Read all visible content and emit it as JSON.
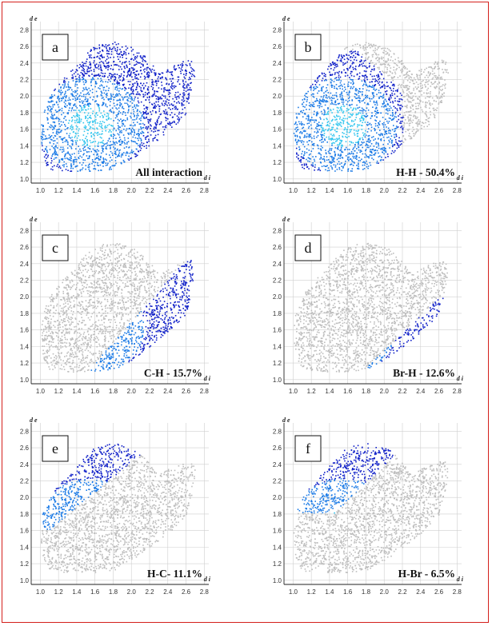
{
  "figure": {
    "colors": {
      "border": "#d4201c",
      "background_points": "#bdbdbd",
      "highlight_low": "#1020c8",
      "highlight_mid": "#1c7be6",
      "highlight_high": "#35c6ee"
    }
  },
  "chart_data": [
    {
      "type": "scatter",
      "panel_label": "a",
      "caption": "All interaction",
      "xlabel": "d i",
      "ylabel": "d e",
      "xlim": [
        0.9,
        2.85
      ],
      "ylim": [
        0.95,
        2.9
      ],
      "xticks": [
        "1.0",
        "1.2",
        "1.4",
        "1.6",
        "1.8",
        "2.0",
        "2.2",
        "2.4",
        "2.6",
        "2.8"
      ],
      "yticks": [
        "1.0",
        "1.2",
        "1.4",
        "1.6",
        "1.8",
        "2.0",
        "2.2",
        "2.4",
        "2.6",
        "2.8"
      ],
      "highlight": "all",
      "percentage": null
    },
    {
      "type": "scatter",
      "panel_label": "b",
      "caption": "H-H - 50.4%",
      "xlabel": "d i",
      "ylabel": "d e",
      "xlim": [
        0.9,
        2.85
      ],
      "ylim": [
        0.95,
        2.9
      ],
      "xticks": [
        "1.0",
        "1.2",
        "1.4",
        "1.6",
        "1.8",
        "2.0",
        "2.2",
        "2.4",
        "2.6",
        "2.8"
      ],
      "yticks": [
        "1.0",
        "1.2",
        "1.4",
        "1.6",
        "1.8",
        "2.0",
        "2.2",
        "2.4",
        "2.6",
        "2.8"
      ],
      "highlight": "H-H",
      "percentage": 50.4
    },
    {
      "type": "scatter",
      "panel_label": "c",
      "caption": "C-H - 15.7%",
      "xlabel": "d i",
      "ylabel": "d e",
      "xlim": [
        0.9,
        2.85
      ],
      "ylim": [
        0.95,
        2.9
      ],
      "xticks": [
        "1.0",
        "1.2",
        "1.4",
        "1.6",
        "1.8",
        "2.0",
        "2.2",
        "2.4",
        "2.6",
        "2.8"
      ],
      "yticks": [
        "1.0",
        "1.2",
        "1.4",
        "1.6",
        "1.8",
        "2.0",
        "2.2",
        "2.4",
        "2.6",
        "2.8"
      ],
      "highlight": "C-H",
      "percentage": 15.7
    },
    {
      "type": "scatter",
      "panel_label": "d",
      "caption": "Br-H - 12.6%",
      "xlabel": "d i",
      "ylabel": "d e",
      "xlim": [
        0.9,
        2.85
      ],
      "ylim": [
        0.95,
        2.9
      ],
      "xticks": [
        "1.0",
        "1.2",
        "1.4",
        "1.6",
        "1.8",
        "2.0",
        "2.2",
        "2.4",
        "2.6",
        "2.8"
      ],
      "yticks": [
        "1.0",
        "1.2",
        "1.4",
        "1.6",
        "1.8",
        "2.0",
        "2.2",
        "2.4",
        "2.6",
        "2.8"
      ],
      "highlight": "Br-H",
      "percentage": 12.6
    },
    {
      "type": "scatter",
      "panel_label": "e",
      "caption": "H-C- 11.1%",
      "xlabel": "d i",
      "ylabel": "d e",
      "xlim": [
        0.9,
        2.85
      ],
      "ylim": [
        0.95,
        2.9
      ],
      "xticks": [
        "1.0",
        "1.2",
        "1.4",
        "1.6",
        "1.8",
        "2.0",
        "2.2",
        "2.4",
        "2.6",
        "2.8"
      ],
      "yticks": [
        "1.0",
        "1.2",
        "1.4",
        "1.6",
        "1.8",
        "2.0",
        "2.2",
        "2.4",
        "2.6",
        "2.8"
      ],
      "highlight": "H-C",
      "percentage": 11.1
    },
    {
      "type": "scatter",
      "panel_label": "f",
      "caption": "H-Br - 6.5%",
      "xlabel": "d i",
      "ylabel": "d e",
      "xlim": [
        0.9,
        2.85
      ],
      "ylim": [
        0.95,
        2.9
      ],
      "xticks": [
        "1.0",
        "1.2",
        "1.4",
        "1.6",
        "1.8",
        "2.0",
        "2.2",
        "2.4",
        "2.6",
        "2.8"
      ],
      "yticks": [
        "1.0",
        "1.2",
        "1.4",
        "1.6",
        "1.8",
        "2.0",
        "2.2",
        "2.4",
        "2.6",
        "2.8"
      ],
      "highlight": "H-Br",
      "percentage": 6.5
    }
  ]
}
